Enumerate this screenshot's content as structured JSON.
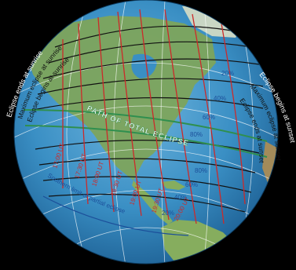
{
  "labels": {
    "ends_sunrise": "Eclipse ends at sunrise",
    "max_sunrise": "Maximum eclipse at sunrise",
    "begins_sunrise": "Eclipse begins at sunrise",
    "begins_sunset": "Eclipse begins at sunset",
    "max_sunset": "Maximum eclipse at sunset",
    "ends_sunset": "Eclipse ends at sunset",
    "path_total": "PATH OF TOTAL ECLIPSE",
    "southern_limit": "Southern limit of partial eclipse"
  },
  "times": [
    "17:00 UT",
    "17:30 UT",
    "18:00 UT",
    "18:30 UT",
    "19:00 UT",
    "19:30 UT",
    "20:00 UT"
  ],
  "percent_north": [
    "20%",
    "40%",
    "60%",
    "80%"
  ],
  "percent_south": [
    "80%",
    "60%",
    "40%",
    "20%"
  ],
  "colors": {
    "ocean": "#3a8fc4",
    "land": "#7da45c",
    "timeline": "#cc2a2a",
    "contour": "#111111",
    "total_path": "#2f8f4f",
    "percent_text": "#1c4f9a",
    "side_text": "#ffffff"
  }
}
